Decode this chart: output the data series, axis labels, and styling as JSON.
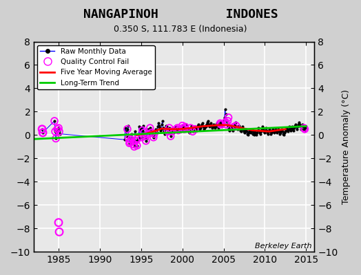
{
  "title_line1": "NANGAPINOH         INDONES",
  "title_line2": "0.350 S, 111.783 E (Indonesia)",
  "ylabel": "Temperature Anomaly (°C)",
  "xlabel_bottom": "Berkeley Earth",
  "xlim": [
    1982,
    2016
  ],
  "ylim": [
    -10,
    8
  ],
  "yticks": [
    -10,
    -8,
    -6,
    -4,
    -2,
    0,
    2,
    4,
    6,
    8
  ],
  "xticks": [
    1985,
    1990,
    1995,
    2000,
    2005,
    2010,
    2015
  ],
  "bg_color": "#e8e8e8",
  "grid_color": "#ffffff",
  "raw_color": "#0000ff",
  "qc_color": "#ff00ff",
  "ma_color": "#ff0000",
  "trend_color": "#00cc00",
  "raw_monthly": {
    "years": [
      1983.0,
      1983.083,
      1984.5,
      1984.583,
      1984.667,
      1984.75,
      1984.833,
      1985.0,
      1985.083,
      1985.167,
      1993.0,
      1993.083,
      1993.167,
      1993.25,
      1993.333,
      1993.417,
      1993.5,
      1993.583,
      1993.667,
      1993.75,
      1993.833,
      1993.917,
      1994.0,
      1994.083,
      1994.167,
      1994.25,
      1994.333,
      1994.417,
      1994.5,
      1994.583,
      1994.667,
      1994.75,
      1994.833,
      1994.917,
      1995.0,
      1995.083,
      1995.167,
      1995.25,
      1995.333,
      1995.417,
      1995.5,
      1995.583,
      1995.667,
      1995.75,
      1995.833,
      1995.917,
      1996.0,
      1996.083,
      1996.167,
      1996.25,
      1996.333,
      1996.417,
      1996.5,
      1996.583,
      1996.667,
      1996.75,
      1996.833,
      1996.917,
      1997.0,
      1997.083,
      1997.167,
      1997.25,
      1997.333,
      1997.417,
      1997.5,
      1997.583,
      1997.667,
      1997.75,
      1997.833,
      1997.917,
      1998.0,
      1998.083,
      1998.167,
      1998.25,
      1998.333,
      1998.417,
      1998.5,
      1998.583,
      1998.667,
      1998.75,
      1998.833,
      1998.917,
      1999.0,
      1999.083,
      1999.167,
      1999.25,
      1999.333,
      1999.417,
      1999.5,
      1999.583,
      1999.667,
      1999.75,
      1999.833,
      1999.917,
      2000.0,
      2000.083,
      2000.167,
      2000.25,
      2000.333,
      2000.417,
      2000.5,
      2000.583,
      2000.667,
      2000.75,
      2000.833,
      2000.917,
      2001.0,
      2001.083,
      2001.167,
      2001.25,
      2001.333,
      2001.417,
      2001.5,
      2001.583,
      2001.667,
      2001.75,
      2001.833,
      2001.917,
      2002.0,
      2002.083,
      2002.167,
      2002.25,
      2002.333,
      2002.417,
      2002.5,
      2002.583,
      2002.667,
      2002.75,
      2002.833,
      2002.917,
      2003.0,
      2003.083,
      2003.167,
      2003.25,
      2003.333,
      2003.417,
      2003.5,
      2003.583,
      2003.667,
      2003.75,
      2003.833,
      2003.917,
      2004.0,
      2004.083,
      2004.167,
      2004.25,
      2004.333,
      2004.417,
      2004.5,
      2004.583,
      2004.667,
      2004.75,
      2004.833,
      2004.917,
      2005.0,
      2005.083,
      2005.167,
      2005.25,
      2005.333,
      2005.417,
      2005.5,
      2005.583,
      2005.667,
      2005.75,
      2005.833,
      2005.917,
      2006.0,
      2006.083,
      2006.167,
      2006.25,
      2006.333,
      2006.417,
      2006.5,
      2006.583,
      2006.667,
      2006.75,
      2006.833,
      2006.917,
      2007.0,
      2007.083,
      2007.167,
      2007.25,
      2007.333,
      2007.417,
      2007.5,
      2007.583,
      2007.667,
      2007.75,
      2007.833,
      2007.917,
      2008.0,
      2008.083,
      2008.167,
      2008.25,
      2008.333,
      2008.417,
      2008.5,
      2008.583,
      2008.667,
      2008.75,
      2008.833,
      2008.917,
      2009.0,
      2009.083,
      2009.167,
      2009.25,
      2009.333,
      2009.417,
      2009.5,
      2009.583,
      2009.667,
      2009.75,
      2009.833,
      2009.917,
      2010.0,
      2010.083,
      2010.167,
      2010.25,
      2010.333,
      2010.417,
      2010.5,
      2010.583,
      2010.667,
      2010.75,
      2010.833,
      2010.917,
      2011.0,
      2011.083,
      2011.167,
      2011.25,
      2011.333,
      2011.417,
      2011.5,
      2011.583,
      2011.667,
      2011.75,
      2011.833,
      2011.917,
      2012.0,
      2012.083,
      2012.167,
      2012.25,
      2012.333,
      2012.417,
      2012.5,
      2012.583,
      2012.667,
      2012.75,
      2012.833,
      2012.917,
      2013.0,
      2013.083,
      2013.167,
      2013.25,
      2013.333,
      2013.417,
      2013.5,
      2013.583,
      2013.667,
      2013.75,
      2013.833,
      2013.917,
      2014.0,
      2014.083,
      2014.167,
      2014.25,
      2014.333,
      2014.417,
      2014.5,
      2014.583,
      2014.667,
      2014.75,
      2014.833,
      2014.917
    ],
    "values": [
      0.5,
      0.2,
      1.2,
      0.3,
      -0.3,
      0.2,
      0.5,
      0.6,
      0.3,
      0.1,
      -0.4,
      0.6,
      0.3,
      -0.1,
      0.5,
      0.8,
      -0.3,
      -0.7,
      -0.6,
      -0.4,
      0.1,
      -0.2,
      -0.5,
      -0.8,
      -1.0,
      0.3,
      -0.5,
      -0.5,
      -0.9,
      -0.3,
      -0.4,
      0.7,
      -0.3,
      0.5,
      0.6,
      -0.2,
      0.4,
      0.8,
      0.2,
      0.0,
      -0.1,
      -0.5,
      -0.3,
      0.2,
      0.5,
      0.1,
      0.3,
      0.6,
      0.4,
      0.2,
      0.0,
      -0.1,
      -0.2,
      0.1,
      0.3,
      0.5,
      0.4,
      0.2,
      0.7,
      1.0,
      0.8,
      0.6,
      0.4,
      0.5,
      0.9,
      1.2,
      0.6,
      0.3,
      0.1,
      0.5,
      0.8,
      0.7,
      0.5,
      0.3,
      0.4,
      0.6,
      0.2,
      -0.1,
      0.3,
      0.5,
      0.4,
      0.2,
      0.3,
      0.6,
      0.8,
      0.5,
      0.3,
      0.4,
      0.5,
      0.6,
      0.4,
      0.3,
      0.5,
      0.7,
      0.8,
      0.6,
      0.4,
      0.5,
      0.7,
      0.9,
      0.6,
      0.4,
      0.5,
      0.3,
      0.2,
      0.4,
      0.6,
      0.8,
      0.5,
      0.3,
      0.4,
      0.6,
      0.7,
      0.5,
      0.4,
      0.6,
      0.8,
      0.9,
      0.7,
      0.5,
      0.6,
      0.8,
      0.9,
      1.0,
      0.7,
      0.5,
      0.6,
      0.8,
      0.7,
      0.9,
      1.1,
      1.2,
      0.9,
      0.7,
      0.8,
      1.0,
      0.8,
      0.6,
      0.7,
      0.9,
      0.8,
      0.6,
      0.7,
      0.9,
      1.0,
      0.8,
      0.6,
      0.7,
      0.9,
      1.1,
      0.9,
      0.7,
      0.8,
      1.0,
      1.2,
      1.5,
      2.2,
      1.8,
      1.2,
      0.9,
      0.7,
      0.5,
      0.4,
      0.6,
      0.8,
      0.7,
      0.5,
      0.4,
      0.6,
      0.7,
      0.9,
      1.1,
      0.8,
      0.6,
      0.5,
      0.7,
      0.8,
      0.6,
      0.4,
      0.3,
      0.5,
      0.7,
      0.5,
      0.3,
      0.2,
      0.4,
      0.5,
      0.3,
      0.1,
      0.0,
      0.2,
      0.4,
      0.3,
      0.2,
      0.4,
      0.5,
      0.3,
      0.1,
      0.0,
      0.2,
      0.3,
      0.1,
      0.0,
      0.2,
      0.4,
      0.6,
      0.4,
      0.2,
      0.1,
      0.3,
      0.5,
      0.7,
      0.5,
      0.3,
      0.2,
      0.4,
      0.6,
      0.4,
      0.2,
      0.1,
      0.3,
      0.5,
      0.3,
      0.1,
      0.2,
      0.4,
      0.5,
      0.3,
      0.2,
      0.4,
      0.5,
      0.3,
      0.2,
      0.4,
      0.5,
      0.3,
      0.1,
      0.2,
      0.4,
      0.5,
      0.3,
      0.1,
      0.0,
      0.2,
      0.3,
      0.5,
      0.6,
      0.4,
      0.3,
      0.5,
      0.7,
      0.5,
      0.4,
      0.6,
      0.7,
      0.5,
      0.4,
      0.6,
      0.8,
      0.9,
      0.7,
      0.5,
      0.7,
      0.9,
      1.1,
      0.9,
      0.7,
      0.5,
      0.7,
      0.9,
      0.7,
      0.5,
      0.4,
      0.6
    ]
  },
  "qc_fail_years": [
    1983.0,
    1983.083,
    1984.5,
    1984.583,
    1984.667,
    1984.833,
    1985.0,
    1985.083,
    1993.333,
    1993.5,
    1993.583,
    1993.667,
    1993.75,
    1993.917,
    1994.083,
    1994.167,
    1994.333,
    1994.5,
    1994.583,
    1995.083,
    1995.167,
    1995.333,
    1995.5,
    1995.583,
    1995.917,
    1996.083,
    1996.25,
    1996.5,
    1996.583,
    1998.25,
    1998.417,
    1998.583,
    1998.667,
    1999.25,
    1999.417,
    1999.5,
    2000.0,
    2000.083,
    2000.25,
    2000.333,
    2001.0,
    2001.25,
    2001.5,
    2004.583,
    2004.667,
    2005.25,
    2005.333,
    2005.5,
    2005.583,
    2006.25,
    2006.5,
    2014.75,
    2014.833
  ],
  "qc_fail_values": [
    0.5,
    0.2,
    1.2,
    0.3,
    -0.3,
    0.5,
    0.6,
    0.3,
    0.5,
    -0.3,
    -0.7,
    -0.6,
    -0.4,
    -0.2,
    -0.8,
    -1.0,
    -0.5,
    -0.9,
    -0.3,
    -0.2,
    0.4,
    0.2,
    -0.1,
    -0.5,
    0.1,
    0.6,
    0.2,
    -0.2,
    0.1,
    0.3,
    0.6,
    -0.1,
    0.3,
    0.5,
    0.6,
    0.4,
    0.8,
    0.6,
    0.5,
    0.7,
    0.6,
    0.3,
    0.5,
    1.0,
    0.9,
    1.1,
    0.9,
    1.2,
    1.5,
    0.7,
    0.8,
    0.6,
    0.5
  ],
  "outlier_years": [
    1983.0,
    1983.083,
    1985.0,
    1985.083
  ],
  "outlier_values": [
    0.5,
    0.2,
    -7.5,
    -8.3
  ],
  "trend_x": [
    1982,
    2015
  ],
  "trend_y": [
    -0.35,
    0.75
  ],
  "ma_x": [
    1994.5,
    1995.5,
    1996.5,
    1997.5,
    1998.5,
    1999.5,
    2000.5,
    2001.5,
    2002.5,
    2003.5,
    2004.5,
    2005.5,
    2006.5,
    2007.5,
    2008.5,
    2009.5,
    2010.5,
    2011.5,
    2012.5
  ],
  "ma_y": [
    0.0,
    0.1,
    0.3,
    0.55,
    0.5,
    0.5,
    0.55,
    0.65,
    0.75,
    0.8,
    0.85,
    0.85,
    0.7,
    0.55,
    0.4,
    0.35,
    0.3,
    0.4,
    0.5
  ]
}
